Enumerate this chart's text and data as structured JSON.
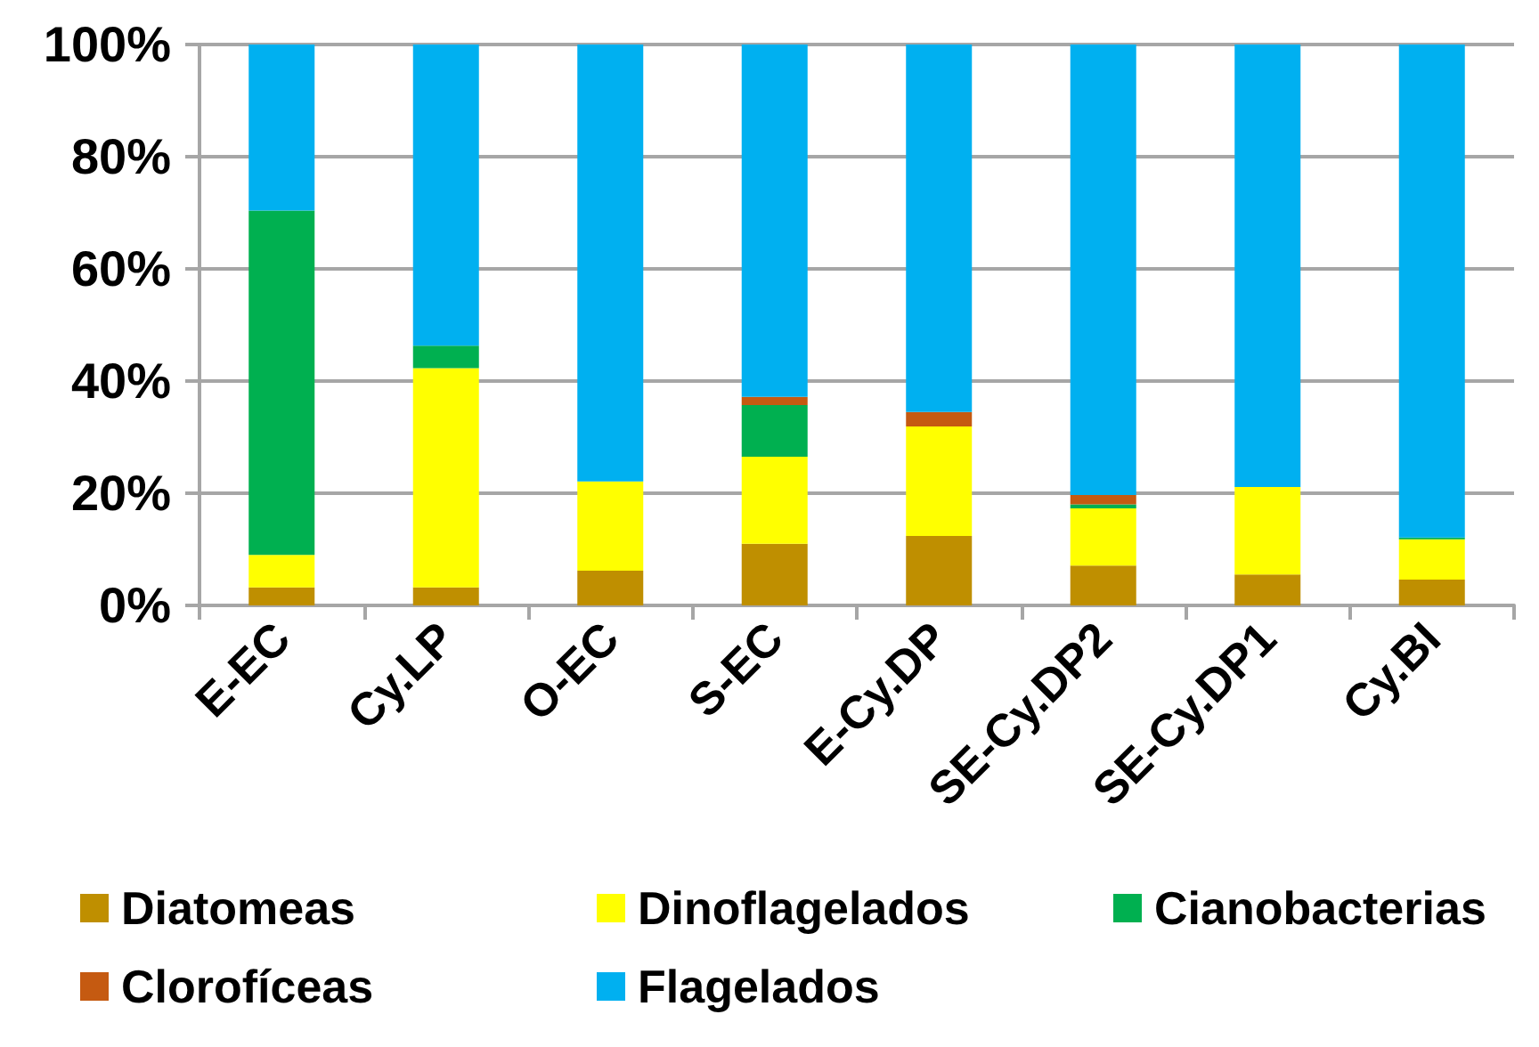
{
  "chart_data": {
    "type": "bar",
    "stacked": true,
    "categories": [
      "E-EC",
      "Cy.LP",
      "O-EC",
      "S-EC",
      "E-Cy.DP",
      "SE-Cy.DP2",
      "SE-Cy.DP1",
      "Cy.BI"
    ],
    "series": [
      {
        "name": "Diatomeas",
        "color": "#bf8f00",
        "values": [
          3.2,
          3.2,
          6.2,
          11,
          12.4,
          7.1,
          5.5,
          4.6
        ]
      },
      {
        "name": "Dinoflagelados",
        "color": "#ffff00",
        "values": [
          5.8,
          39.1,
          15.9,
          15.5,
          19.5,
          10.2,
          15.6,
          7.2
        ]
      },
      {
        "name": "Cianobacterias",
        "color": "#00b050",
        "values": [
          61.4,
          4,
          0,
          9.2,
          0,
          0.7,
          0,
          0.3
        ]
      },
      {
        "name": "Clorofíceas",
        "color": "#c55a11",
        "values": [
          0,
          0,
          0,
          1.5,
          2.6,
          1.7,
          0,
          0
        ]
      },
      {
        "name": "Flagelados",
        "color": "#00b0f0",
        "values": [
          29.6,
          53.7,
          77.9,
          62.8,
          65.5,
          80.3,
          78.9,
          87.9
        ]
      }
    ],
    "ylim": [
      0,
      100
    ],
    "yticks": [
      {
        "value": 0,
        "label": "0%"
      },
      {
        "value": 20,
        "label": "20%"
      },
      {
        "value": 40,
        "label": "40%"
      },
      {
        "value": 60,
        "label": "60%"
      },
      {
        "value": 80,
        "label": "80%"
      },
      {
        "value": 100,
        "label": "100%"
      }
    ],
    "grid": true,
    "legend": "bottom"
  }
}
